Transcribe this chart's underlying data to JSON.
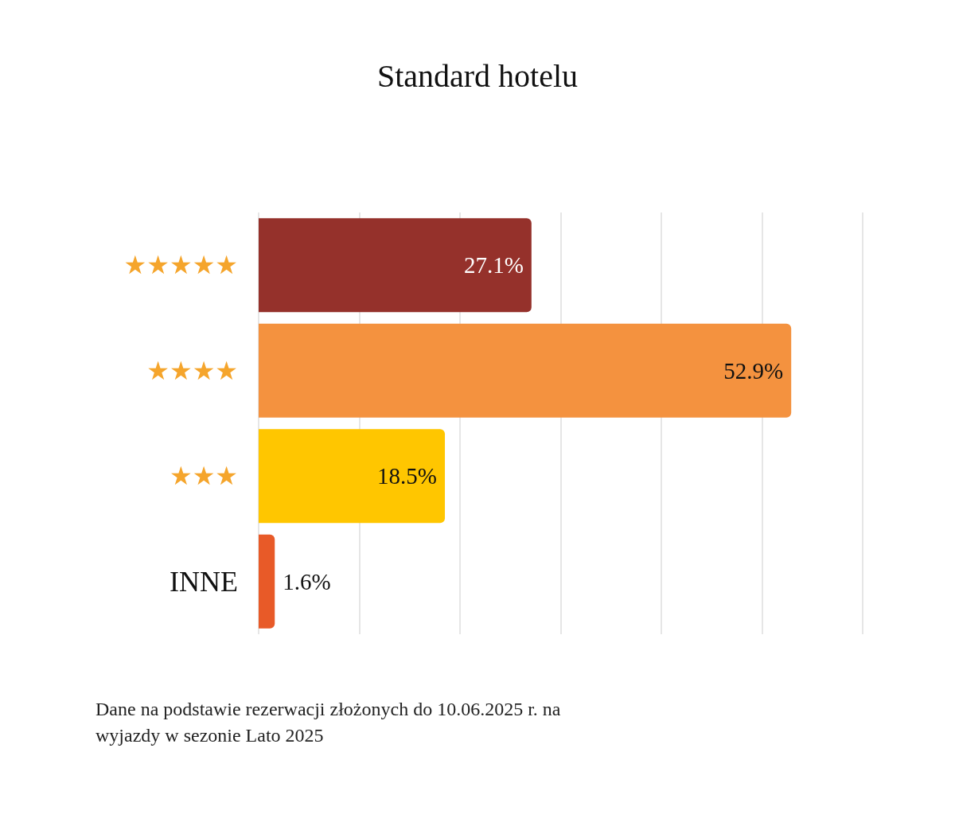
{
  "chart_data": {
    "type": "bar",
    "orientation": "horizontal",
    "title": "Standard hotelu",
    "categories": [
      "★★★★★",
      "★★★★",
      "★★★",
      "INNE"
    ],
    "values": [
      27.1,
      52.9,
      18.5,
      1.6
    ],
    "colors": [
      "#95312b",
      "#f4923f",
      "#ffc600",
      "#e85a28"
    ],
    "value_labels": [
      "27.1%",
      "52.9%",
      "18.5%",
      "1.6%"
    ],
    "xlim": [
      0,
      60
    ],
    "xticks": [
      {
        "value": 0,
        "label": null
      },
      {
        "value": 10,
        "label": null
      },
      {
        "value": 20,
        "label": null
      },
      {
        "value": 30,
        "label": null
      },
      {
        "value": 40,
        "label": null
      },
      {
        "value": 50,
        "label": null
      },
      {
        "value": 60,
        "label": null
      }
    ],
    "grid": "x",
    "tick_labels": "y",
    "annotations": [
      "Dane na podstawie rezerwacji złożonych do 10.06.2025 r. na wyjazdy w sezonie Lato 2025"
    ]
  }
}
